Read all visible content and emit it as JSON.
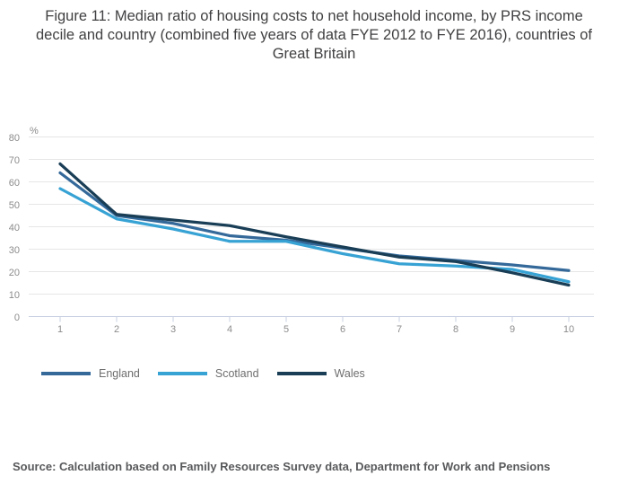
{
  "title": "Figure 11: Median ratio of housing costs to net household income, by PRS income decile and country (combined five years of data FYE 2012 to FYE 2016), countries of Great Britain",
  "source": "Source: Calculation based on Family Resources Survey data, Department for Work and Pensions",
  "axis": {
    "unit_label": "%",
    "yticks": [
      0,
      10,
      20,
      30,
      40,
      50,
      60,
      70,
      80
    ],
    "xticks": [
      "1",
      "2",
      "3",
      "4",
      "5",
      "6",
      "7",
      "8",
      "9",
      "10"
    ],
    "tick_label_color": "#8c8c8c",
    "gridline_color": "#e6e6e6",
    "axis_line_color": "#c7d0e2"
  },
  "chart_data": {
    "type": "line",
    "title": "Figure 11: Median ratio of housing costs to net household income, by PRS income decile and country (combined five years of data FYE 2012 to FYE 2016), countries of Great Britain",
    "xlabel": "",
    "ylabel": "%",
    "x": [
      1,
      2,
      3,
      4,
      5,
      6,
      7,
      8,
      9,
      10
    ],
    "ylim": [
      0,
      80
    ],
    "ytick_step": 10,
    "grid": true,
    "legend_position": "bottom-left",
    "series": [
      {
        "name": "England",
        "color": "#34699a",
        "values": [
          64,
          45,
          41.5,
          36,
          34,
          30.5,
          27,
          25,
          23,
          20.5
        ]
      },
      {
        "name": "Scotland",
        "color": "#37a2d4",
        "values": [
          57,
          43.5,
          39,
          33.5,
          33.5,
          28,
          23.5,
          22.5,
          21,
          15.5
        ]
      },
      {
        "name": "Wales",
        "color": "#193e56",
        "values": [
          68,
          45.5,
          43,
          40.5,
          35.5,
          31,
          26.5,
          24.5,
          19.5,
          14
        ]
      }
    ]
  }
}
